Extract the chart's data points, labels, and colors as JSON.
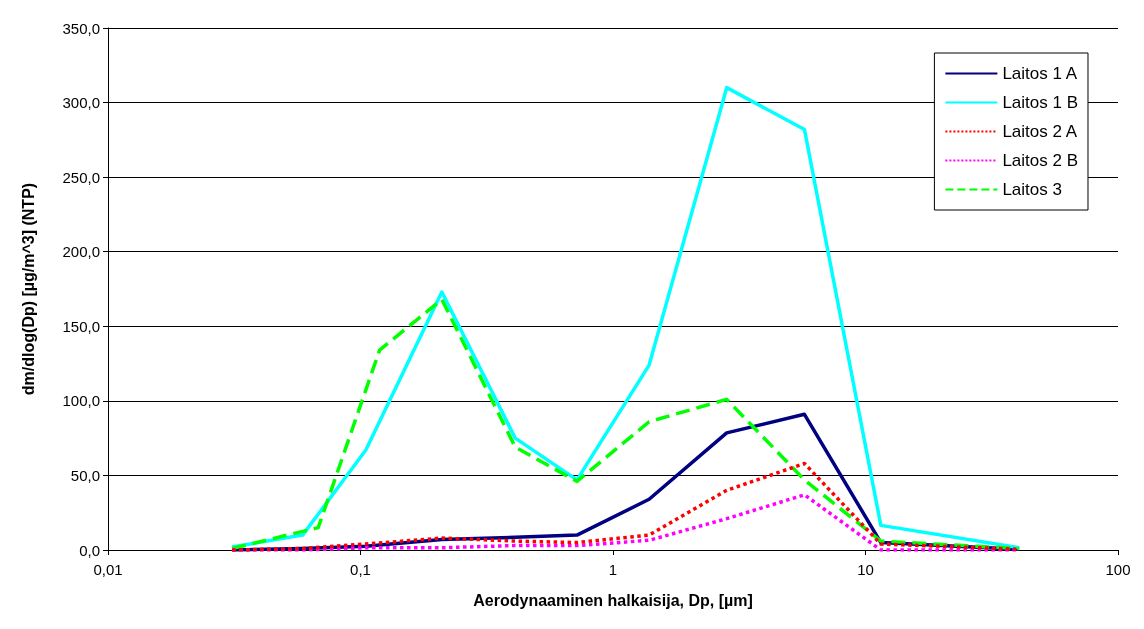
{
  "chart_data": {
    "type": "line",
    "xlabel": "Aerodynaaminen halkaisija, Dp, [µm]",
    "ylabel": "dm/dlog(Dp) [µg/m^3] (NTP)",
    "x": [
      0.031,
      0.059,
      0.105,
      0.21,
      0.41,
      0.72,
      1.39,
      2.82,
      5.73,
      11.5,
      40.6
    ],
    "series": [
      {
        "name": "Laitos 1 A",
        "color": "#000080",
        "line_style": "solid",
        "values": [
          0,
          1,
          2.5,
          7,
          8.5,
          10,
          34,
          78.5,
          91,
          5,
          0.5
        ]
      },
      {
        "name": "Laitos 1 B",
        "color": "#00ffff",
        "line_style": "solid",
        "values": [
          2,
          10,
          67,
          173,
          75,
          47,
          124,
          310,
          282,
          16.5,
          1.5
        ]
      },
      {
        "name": "Laitos 2 A",
        "color": "#ff0000",
        "line_style": "dotted",
        "values": [
          0,
          1,
          4,
          8,
          6,
          5,
          10,
          40,
          58,
          4,
          0.5
        ]
      },
      {
        "name": "Laitos 2 B",
        "color": "#ff00ff",
        "line_style": "dotted",
        "values": [
          0,
          0,
          1.5,
          1.5,
          3,
          3,
          6.5,
          21,
          37,
          0,
          0
        ]
      },
      {
        "name": "Laitos 3",
        "color": "#00ff00",
        "line_style": "dashed",
        "x": [
          0.031,
          0.068,
          0.119,
          0.21,
          0.41,
          0.72,
          1.39,
          2.82,
          5.73,
          11.5,
          40.6
        ],
        "values": [
          1,
          15,
          134,
          168,
          69,
          46,
          86,
          101,
          47,
          6,
          1
        ]
      }
    ],
    "log": "x",
    "xlim": [
      0.01,
      100
    ],
    "xticks": [
      {
        "value": 0.01,
        "label": "0,01"
      },
      {
        "value": 0.1,
        "label": "0,1"
      },
      {
        "value": 1,
        "label": "1"
      },
      {
        "value": 10,
        "label": "10"
      },
      {
        "value": 100,
        "label": "100"
      }
    ],
    "ylim": [
      0,
      350
    ],
    "yticks": [
      {
        "value": 0,
        "label": "0,0"
      },
      {
        "value": 50,
        "label": "50,0"
      },
      {
        "value": 100,
        "label": "100,0"
      },
      {
        "value": 150,
        "label": "150,0"
      },
      {
        "value": 200,
        "label": "200,0"
      },
      {
        "value": 250,
        "label": "250,0"
      },
      {
        "value": 300,
        "label": "300,0"
      },
      {
        "value": 350,
        "label": "350,0"
      }
    ],
    "grid": "y",
    "legend": "top right",
    "marker": "none"
  }
}
